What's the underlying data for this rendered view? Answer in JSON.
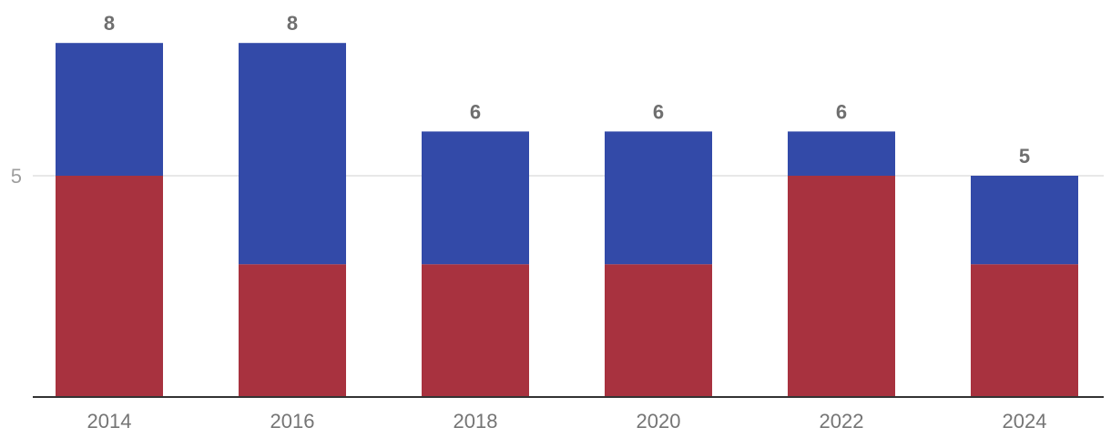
{
  "chart_data": {
    "type": "bar",
    "stacked": true,
    "categories": [
      "2014",
      "2016",
      "2018",
      "2020",
      "2022",
      "2024"
    ],
    "series": [
      {
        "color": "#a8323f",
        "values": [
          5,
          3,
          3,
          3,
          5,
          3
        ]
      },
      {
        "color": "#334aa8",
        "values": [
          3,
          5,
          3,
          3,
          1,
          2
        ]
      }
    ],
    "totals": [
      "8",
      "8",
      "6",
      "6",
      "6",
      "5"
    ],
    "y_ticks": [
      {
        "value": 5,
        "label": "5"
      }
    ],
    "ylim": [
      0,
      10
    ],
    "grid": true,
    "legend": "none",
    "title": "",
    "xlabel": "",
    "ylabel": ""
  }
}
